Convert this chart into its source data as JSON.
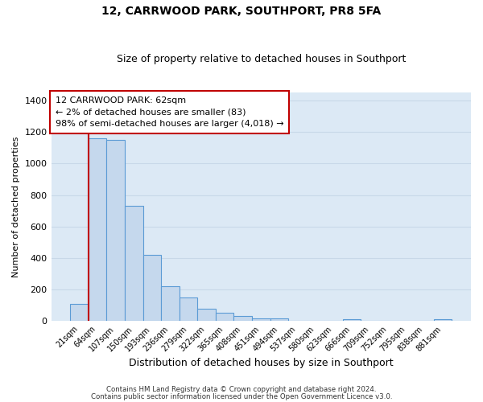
{
  "title": "12, CARRWOOD PARK, SOUTHPORT, PR8 5FA",
  "subtitle": "Size of property relative to detached houses in Southport",
  "xlabel": "Distribution of detached houses by size in Southport",
  "ylabel": "Number of detached properties",
  "bar_labels": [
    "21sqm",
    "64sqm",
    "107sqm",
    "150sqm",
    "193sqm",
    "236sqm",
    "279sqm",
    "322sqm",
    "365sqm",
    "408sqm",
    "451sqm",
    "494sqm",
    "537sqm",
    "580sqm",
    "623sqm",
    "666sqm",
    "709sqm",
    "752sqm",
    "795sqm",
    "838sqm",
    "881sqm"
  ],
  "bar_heights": [
    110,
    1160,
    1150,
    730,
    420,
    220,
    150,
    75,
    50,
    30,
    15,
    15,
    0,
    0,
    0,
    10,
    0,
    0,
    0,
    0,
    10
  ],
  "bar_color": "#c5d8ed",
  "bar_edge_color": "#5b9bd5",
  "grid_color": "#c8d8e8",
  "background_color": "#dce9f5",
  "vline_x": 0.5,
  "vline_color": "#c00000",
  "annotation_box_text": "12 CARRWOOD PARK: 62sqm\n← 2% of detached houses are smaller (83)\n98% of semi-detached houses are larger (4,018) →",
  "ylim": [
    0,
    1450
  ],
  "yticks": [
    0,
    200,
    400,
    600,
    800,
    1000,
    1200,
    1400
  ],
  "footer_line1": "Contains HM Land Registry data © Crown copyright and database right 2024.",
  "footer_line2": "Contains public sector information licensed under the Open Government Licence v3.0."
}
